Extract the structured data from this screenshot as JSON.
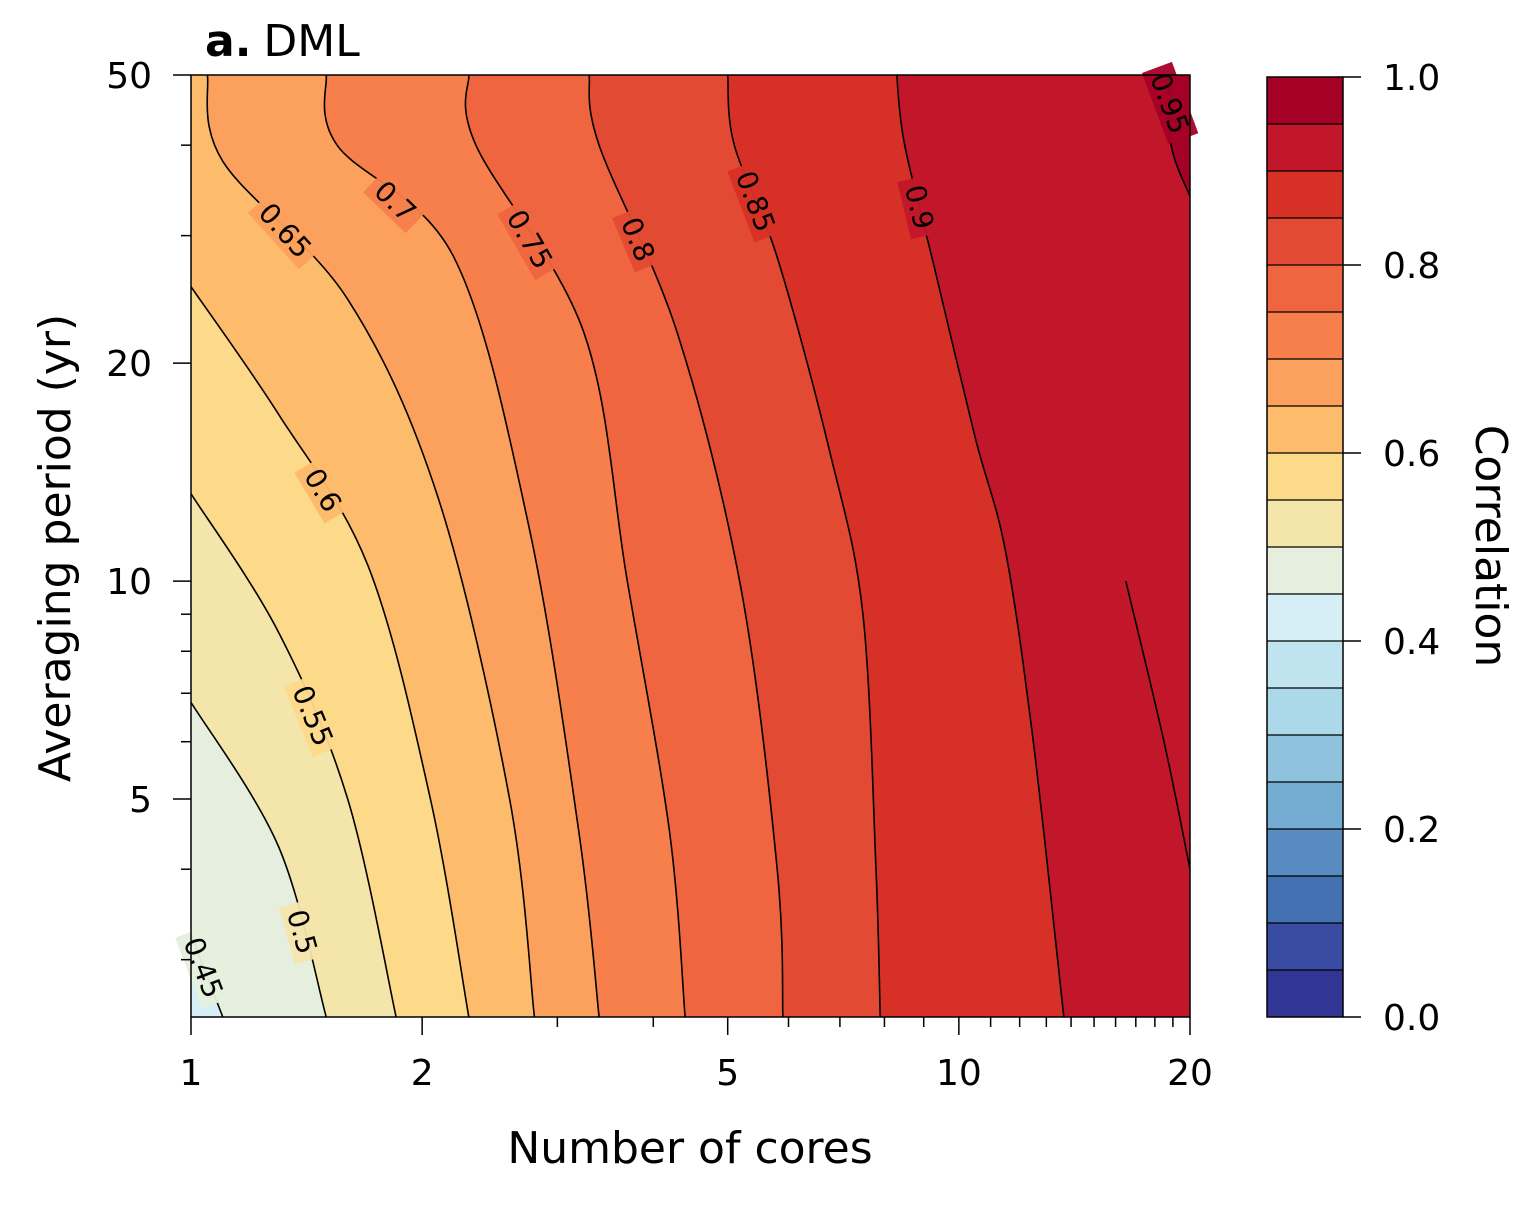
{
  "chart_data": {
    "type": "contour",
    "panel_label": "a.",
    "title": "DML",
    "xlabel": "Number of cores",
    "ylabel": "Averaging period (yr)",
    "x_scale": "log",
    "y_scale": "log",
    "xlim": [
      1,
      20
    ],
    "ylim": [
      2.5,
      50
    ],
    "x_ticks": [
      1,
      2,
      5,
      10,
      20
    ],
    "x_tick_labels": [
      "1",
      "2",
      "5",
      "10",
      "20"
    ],
    "y_ticks": [
      5,
      10,
      20,
      50
    ],
    "y_tick_labels": [
      "5",
      "10",
      "20",
      "50"
    ],
    "colorbar": {
      "label": "Correlation",
      "range": [
        0,
        1
      ],
      "ticks": [
        0.0,
        0.2,
        0.4,
        0.6,
        0.8,
        1.0
      ],
      "tick_labels": [
        "0.0",
        "0.2",
        "0.4",
        "0.6",
        "0.8",
        "1.0"
      ],
      "level_step": 0.05,
      "colors": [
        "#313695",
        "#3a4ba2",
        "#4471b2",
        "#588cc1",
        "#74add1",
        "#8fc3dd",
        "#abd9e9",
        "#bfe4ef",
        "#d6eef5",
        "#e6efdd",
        "#f4e5ab",
        "#fdd98a",
        "#fdbb6c",
        "#fca05d",
        "#f67f4b",
        "#ee6540",
        "#e34a33",
        "#d73027",
        "#c2172a",
        "#a50026"
      ]
    },
    "contours": [
      {
        "level": 0.45,
        "label": "0.45",
        "points": [
          [
            1.0,
            3.25
          ],
          [
            1.1,
            2.5
          ]
        ]
      },
      {
        "level": 0.5,
        "label": "0.5",
        "points": [
          [
            1.0,
            6.8
          ],
          [
            1.3,
            4.3
          ],
          [
            1.5,
            2.5
          ]
        ]
      },
      {
        "level": 0.55,
        "label": "0.55",
        "points": [
          [
            1.0,
            13.2
          ],
          [
            1.3,
            8.5
          ],
          [
            1.6,
            5.0
          ],
          [
            1.85,
            2.5
          ]
        ]
      },
      {
        "level": 0.6,
        "label": "0.6",
        "points": [
          [
            1.0,
            25.5
          ],
          [
            1.3,
            17.0
          ],
          [
            1.7,
            10.5
          ],
          [
            2.05,
            5.0
          ],
          [
            2.3,
            2.5
          ]
        ]
      },
      {
        "level": 0.65,
        "label": "0.65",
        "points": [
          [
            1.05,
            50
          ],
          [
            1.1,
            38
          ],
          [
            1.6,
            24.5
          ],
          [
            2.1,
            13.0
          ],
          [
            2.6,
            5.0
          ],
          [
            2.8,
            2.5
          ]
        ]
      },
      {
        "level": 0.7,
        "label": "0.7",
        "points": [
          [
            1.5,
            50
          ],
          [
            1.55,
            40
          ],
          [
            2.2,
            28.0
          ],
          [
            2.75,
            12.0
          ],
          [
            3.2,
            4.5
          ],
          [
            3.4,
            2.5
          ]
        ]
      },
      {
        "level": 0.75,
        "label": "0.75",
        "points": [
          [
            2.3,
            50
          ],
          [
            2.35,
            40
          ],
          [
            3.25,
            22.0
          ],
          [
            3.7,
            10.0
          ],
          [
            4.2,
            4.5
          ],
          [
            4.4,
            2.5
          ]
        ]
      },
      {
        "level": 0.8,
        "label": "0.8",
        "points": [
          [
            3.3,
            50
          ],
          [
            3.4,
            40
          ],
          [
            4.3,
            22.0
          ],
          [
            5.2,
            9.8
          ],
          [
            5.8,
            4.0
          ],
          [
            5.9,
            2.5
          ]
        ]
      },
      {
        "level": 0.85,
        "label": "0.85",
        "points": [
          [
            5.0,
            50
          ],
          [
            5.1,
            40
          ],
          [
            5.8,
            28.0
          ],
          [
            6.8,
            15.0
          ],
          [
            7.5,
            9.0
          ],
          [
            7.8,
            4.0
          ],
          [
            7.9,
            2.5
          ]
        ]
      },
      {
        "level": 0.9,
        "label": "0.9",
        "points": [
          [
            8.3,
            50
          ],
          [
            8.5,
            40
          ],
          [
            9.3,
            27.0
          ],
          [
            10.5,
            15.8
          ],
          [
            11.5,
            11.0
          ],
          [
            12.5,
            6.0
          ],
          [
            13.7,
            2.5
          ]
        ]
      },
      {
        "level": 0.95,
        "label": "0.95",
        "points": [
          [
            18.8,
            50
          ],
          [
            18.9,
            40
          ],
          [
            20.0,
            34.0
          ]
        ]
      },
      {
        "level": 0.95,
        "label": "",
        "points": [
          [
            16.5,
            10.0
          ],
          [
            18.5,
            6.0
          ],
          [
            20.0,
            4.0
          ]
        ]
      }
    ]
  }
}
